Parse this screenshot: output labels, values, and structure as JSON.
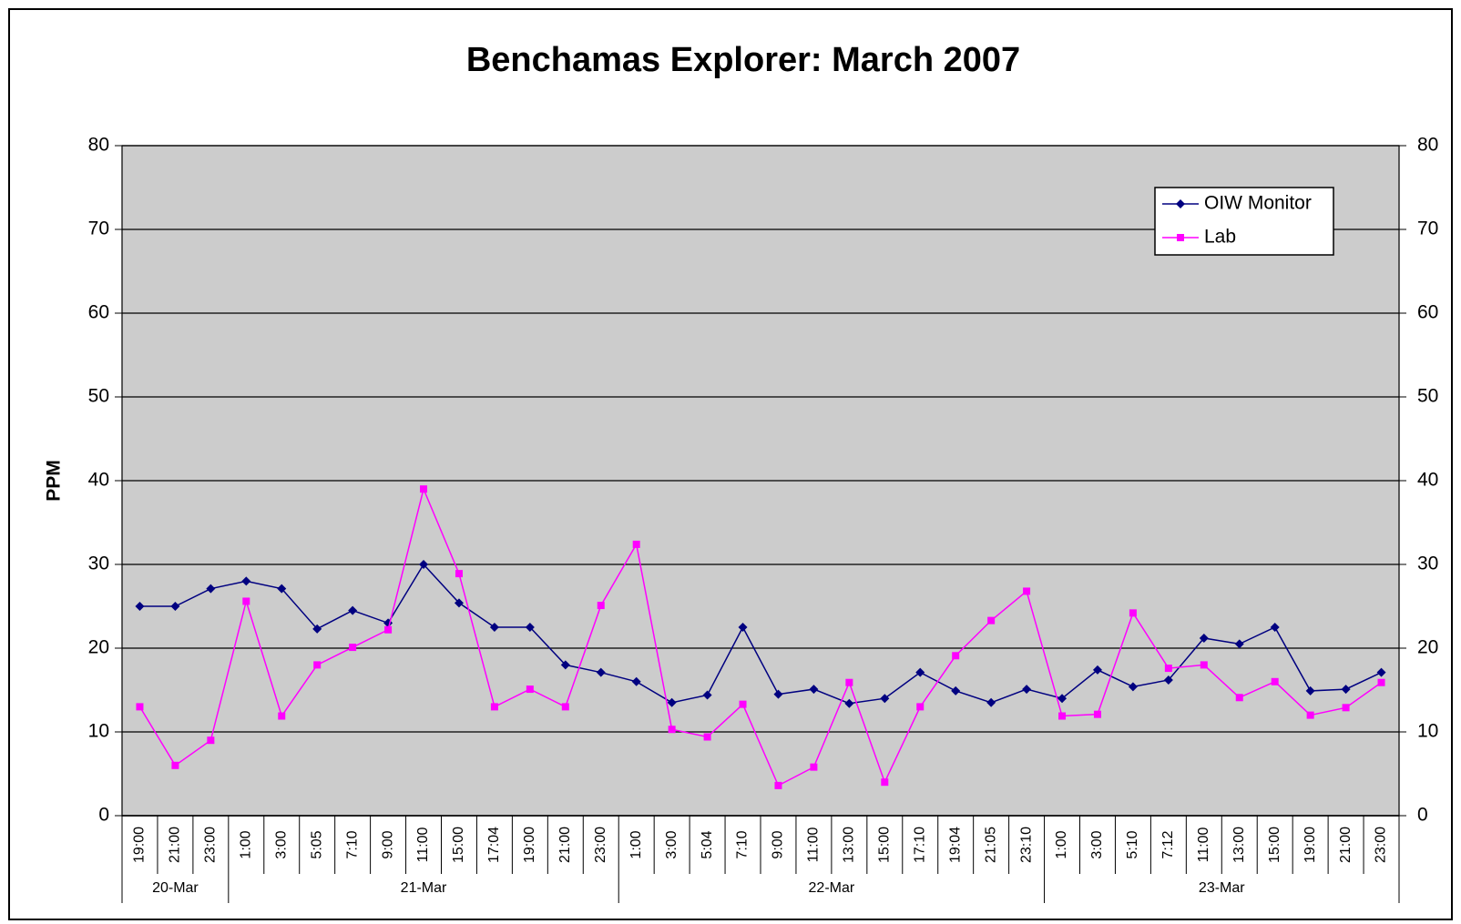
{
  "chart_data": {
    "type": "line",
    "title": "Benchamas Explorer: March 2007",
    "y_label": "PPM",
    "categories": [
      "19:00",
      "21:00",
      "23:00",
      "1:00",
      "3:00",
      "5:05",
      "7:10",
      "9:00",
      "11:00",
      "15:00",
      "17:04",
      "19:00",
      "21:00",
      "23:00",
      "1:00",
      "3:00",
      "5:04",
      "7:10",
      "9:00",
      "11:00",
      "13:00",
      "15:00",
      "17:10",
      "19:04",
      "21:05",
      "23:10",
      "1:00",
      "3:00",
      "5:10",
      "7:12",
      "11:00",
      "13:00",
      "15:00",
      "19:00",
      "21:00",
      "23:00"
    ],
    "dates": [
      "20-Mar",
      null,
      null,
      "21-Mar",
      null,
      null,
      null,
      null,
      null,
      null,
      null,
      null,
      null,
      null,
      "22-Mar",
      null,
      null,
      null,
      null,
      null,
      null,
      null,
      null,
      null,
      null,
      null,
      "23-Mar",
      null,
      null,
      null,
      null,
      null,
      null,
      null,
      null,
      null
    ],
    "series": [
      {
        "name": "OIW Monitor",
        "color": "#000080",
        "marker": "diamond",
        "values": [
          25,
          25,
          27.1,
          28,
          27.1,
          22.3,
          24.5,
          23,
          30,
          25.4,
          22.5,
          22.5,
          18,
          17.1,
          16,
          13.5,
          14.4,
          22.5,
          14.5,
          15.1,
          13.4,
          14,
          17.1,
          14.9,
          13.5,
          15.1,
          14,
          17.4,
          15.4,
          16.2,
          21.2,
          20.5,
          22.5,
          14.9,
          15.1,
          17.1
        ]
      },
      {
        "name": "Lab",
        "color": "#ff00ff",
        "marker": "square",
        "values": [
          13,
          6,
          9,
          25.6,
          11.9,
          18,
          20.1,
          22.2,
          39,
          28.9,
          13,
          15.1,
          13,
          25.1,
          32.4,
          10.3,
          9.4,
          13.3,
          3.6,
          5.8,
          15.9,
          4,
          13,
          19.1,
          23.3,
          26.8,
          11.9,
          12.1,
          24.2,
          17.6,
          18,
          14.1,
          16,
          12,
          12.9,
          15.9
        ]
      }
    ],
    "ylim": [
      0,
      80
    ],
    "yticks": [
      0,
      10,
      20,
      30,
      40,
      50,
      60,
      70,
      80
    ],
    "y2lim": [
      0,
      80
    ],
    "y2ticks": [
      0,
      10,
      20,
      30,
      40,
      50,
      60,
      70,
      80
    ],
    "grid": true,
    "legend": "top-right",
    "plot_background": "#cccccc"
  }
}
